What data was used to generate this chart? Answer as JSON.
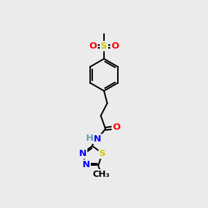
{
  "background_color": "#ebebeb",
  "atom_colors": {
    "C": "#000000",
    "H": "#5f9ea0",
    "N": "#0000ff",
    "O": "#ff0000",
    "S": "#cccc00"
  },
  "bond_color": "#000000",
  "bond_width": 1.5,
  "font_size_atoms": 9.5,
  "font_size_methyl": 9,
  "xlim": [
    0,
    10
  ],
  "ylim": [
    0,
    14
  ]
}
